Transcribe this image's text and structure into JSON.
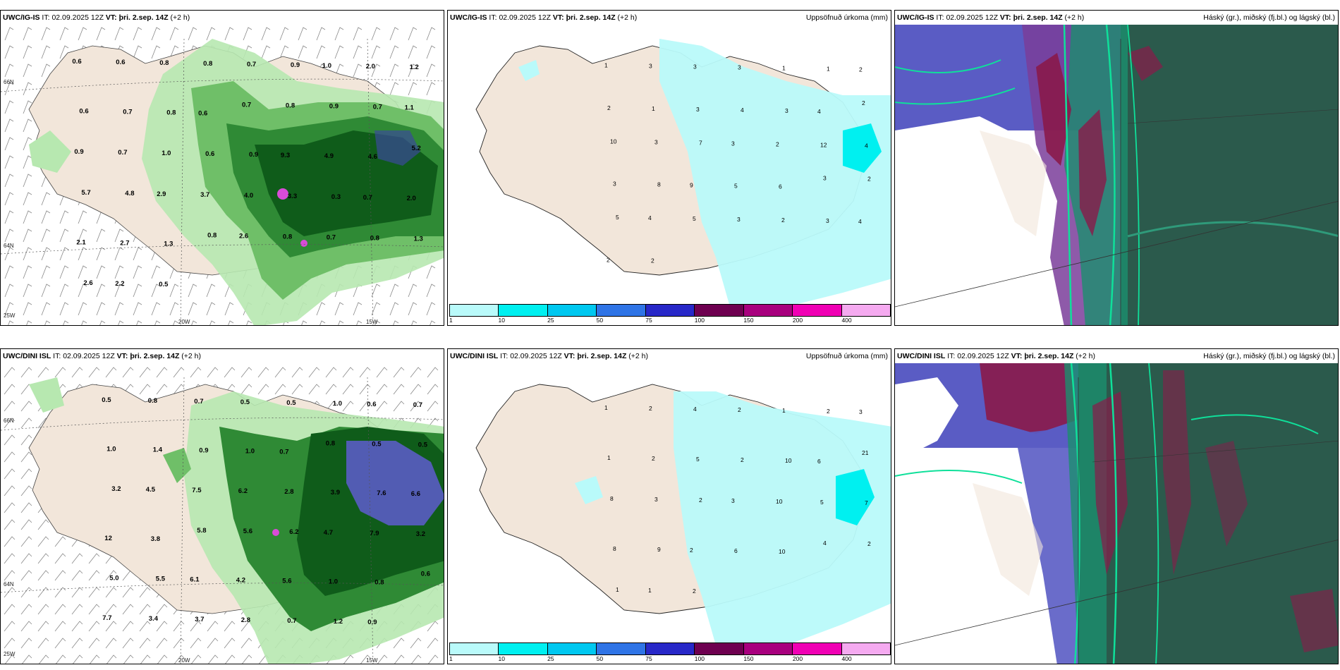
{
  "panels": {
    "p1": {
      "model": "UWC/IG-IS",
      "it_label": "IT:",
      "it_value": "02.09.2025 12Z",
      "vt_label": "VT:",
      "vt_value": "þri. 2.sep. 14Z",
      "lead": "(+2 h)",
      "title_right": ""
    },
    "p2": {
      "model": "UWC/IG-IS",
      "it_label": "IT:",
      "it_value": "02.09.2025 12Z",
      "vt_label": "VT:",
      "vt_value": "þri. 2.sep. 14Z",
      "lead": "(+2 h)",
      "title_right": "Uppsöfnuð úrkoma (mm)"
    },
    "p3": {
      "model": "UWC/IG-IS",
      "it_label": "IT:",
      "it_value": "02.09.2025 12Z",
      "vt_label": "VT:",
      "vt_value": "þri. 2.sep. 14Z",
      "lead": "(+2 h)",
      "title_right": "Háský (gr.), miðský (fj.bl.) og lágský (bl.)"
    },
    "p4": {
      "model": "UWC/DINI ISL",
      "it_label": "IT:",
      "it_value": "02.09.2025 12Z",
      "vt_label": "VT:",
      "vt_value": "þri. 2.sep. 14Z",
      "lead": "(+2 h)",
      "title_right": ""
    },
    "p5": {
      "model": "UWC/DINI ISL",
      "it_label": "IT:",
      "it_value": "02.09.2025 12Z",
      "vt_label": "VT:",
      "vt_value": "þri. 2.sep. 14Z",
      "lead": "(+2 h)",
      "title_right": "Uppsöfnuð úrkoma (mm)"
    },
    "p6": {
      "model": "UWC/DINI ISL",
      "it_label": "IT:",
      "it_value": "02.09.2025 12Z",
      "vt_label": "VT:",
      "vt_value": "þri. 2.sep. 14Z",
      "lead": "(+2 h)",
      "title_right": "Háský (gr.), miðský (fj.bl.) og lágský (bl.)"
    }
  },
  "coords": {
    "lat66": "66N",
    "lat64": "64N",
    "lon25": "25W",
    "lon20": "20W",
    "lon15": "15W"
  },
  "scale": {
    "ticks": [
      "1",
      "10",
      "25",
      "50",
      "75",
      "100",
      "150",
      "200",
      "400"
    ],
    "colors": [
      "#b9fafa",
      "#00f0f0",
      "#00c8f0",
      "#2f74e6",
      "#2828c8",
      "#6e0050",
      "#a8007e",
      "#f000b4",
      "#f5aaf0"
    ]
  },
  "labels": {
    "p1": [
      "0.6",
      "0.6",
      "0.8",
      "0.8",
      "0.7",
      "0.9",
      "1.0",
      "2.0",
      "1.2",
      "0.6",
      "0.7",
      "0.8",
      "0.6",
      "0.7",
      "0.8",
      "0.9",
      "0.7",
      "1.1",
      "0.9",
      "0.7",
      "1.0",
      "0.6",
      "0.9",
      "9.3",
      "4.9",
      "4.6",
      "5.2",
      "5.7",
      "4.8",
      "2.9",
      "3.7",
      "4.0",
      "3.3",
      "0.3",
      "0.7",
      "2.0",
      "2.1",
      "2.7",
      "1.3",
      "0.8",
      "2.6",
      "0.8",
      "0.7",
      "0.8",
      "1.3",
      "2.6",
      "2.2",
      "0.5"
    ],
    "p2": [
      "1",
      "3",
      "3",
      "3",
      "1",
      "1",
      "2",
      "2",
      "1",
      "3",
      "4",
      "3",
      "4",
      "2",
      "10",
      "3",
      "7",
      "3",
      "2",
      "12",
      "4",
      "3",
      "8",
      "9",
      "5",
      "6",
      "3",
      "2",
      "5",
      "4",
      "5",
      "3",
      "2",
      "3",
      "4",
      "2",
      "2"
    ],
    "p4": [
      "0.5",
      "0.8",
      "0.7",
      "0.5",
      "0.5",
      "1.0",
      "0.6",
      "0.7",
      "1.0",
      "1.4",
      "0.9",
      "1.0",
      "0.7",
      "0.8",
      "0.5",
      "0.5",
      "3.2",
      "4.5",
      "7.5",
      "6.2",
      "2.8",
      "3.9",
      "7.6",
      "6.6",
      "12",
      "3.8",
      "5.8",
      "5.6",
      "6.2",
      "4.7",
      "7.9",
      "3.2",
      "5.0",
      "5.5",
      "6.1",
      "4.2",
      "5.6",
      "1.0",
      "0.8",
      "0.6",
      "7.7",
      "3.4",
      "3.7",
      "2.8",
      "0.7",
      "1.2",
      "0.9"
    ],
    "p5": [
      "1",
      "2",
      "4",
      "2",
      "1",
      "2",
      "3",
      "1",
      "2",
      "5",
      "2",
      "10",
      "6",
      "21",
      "8",
      "3",
      "2",
      "3",
      "10",
      "5",
      "7",
      "8",
      "9",
      "2",
      "6",
      "10",
      "4",
      "2",
      "1",
      "1",
      "2"
    ]
  }
}
